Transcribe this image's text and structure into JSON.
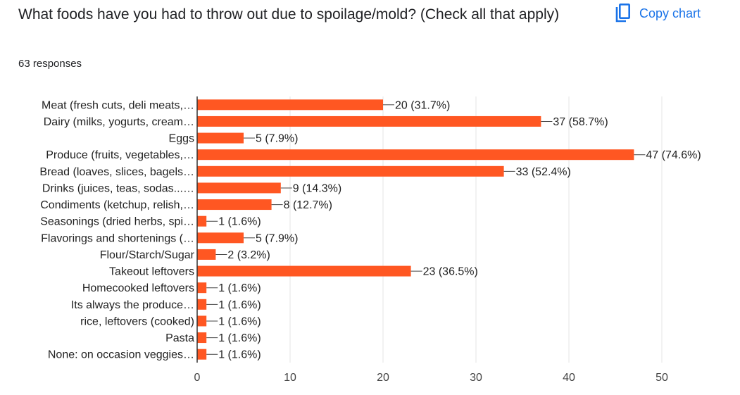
{
  "title": "What foods have you had to throw out due to spoilage/mold? (Check all that apply)",
  "responses": "63 responses",
  "copy_chart": {
    "label": "Copy chart",
    "icon": "copy-icon"
  },
  "colors": {
    "bar": "#ff5722",
    "accent": "#1a73e8",
    "grid": "#e6e6e6",
    "axis": "#333333"
  },
  "chart_data": {
    "type": "bar",
    "orientation": "horizontal",
    "title": "",
    "xlabel": "",
    "ylabel": "",
    "xlim": [
      0,
      50
    ],
    "ticks": [
      0,
      10,
      20,
      30,
      40,
      50
    ],
    "grid": true,
    "categories": [
      "Meat (fresh cuts, deli meats,…",
      "Dairy (milks, yogurts, cream…",
      "Eggs",
      "Produce (fruits, vegetables,…",
      "Bread (loaves, slices, bagels…",
      "Drinks (juices, teas, sodas...…",
      "Condiments (ketchup, relish,…",
      "Seasonings (dried herbs, spi…",
      "Flavorings and shortenings (…",
      "Flour/Starch/Sugar",
      "Takeout leftovers",
      "Homecooked leftovers",
      "Its always the produce…",
      "rice, leftovers (cooked)",
      "Pasta",
      "None: on occasion veggies…"
    ],
    "values": [
      20,
      37,
      5,
      47,
      33,
      9,
      8,
      1,
      5,
      2,
      23,
      1,
      1,
      1,
      1,
      1
    ],
    "labels": [
      "20 (31.7%)",
      "37 (58.7%)",
      "5 (7.9%)",
      "47 (74.6%)",
      "33 (52.4%)",
      "9 (14.3%)",
      "8 (12.7%)",
      "1 (1.6%)",
      "5 (7.9%)",
      "2 (3.2%)",
      "23 (36.5%)",
      "1 (1.6%)",
      "1 (1.6%)",
      "1 (1.6%)",
      "1 (1.6%)",
      "1 (1.6%)"
    ]
  }
}
